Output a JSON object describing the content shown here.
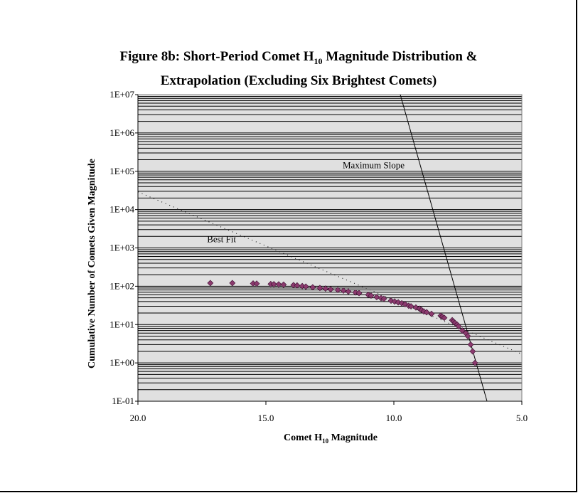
{
  "chart_data": {
    "type": "scatter",
    "title_line1_pre": "Figure 8b:  Short-Period Comet H",
    "title_sub": "10",
    "title_line1_post": " Magnitude Distribution &",
    "title_line2": "Extrapolation (Excluding Six Brightest Comets)",
    "xlabel_pre": "Comet H",
    "xlabel_sub": "10",
    "xlabel_post": " Magnitude",
    "ylabel": "Cumulative Number of Comets Given Magnitude",
    "xlim": [
      20,
      5
    ],
    "ylim": [
      0.1,
      10000000
    ],
    "yscale": "log",
    "x_ticks": [
      "20.0",
      "15.0",
      "10.0",
      "5.0"
    ],
    "x_tick_values": [
      20,
      15,
      10,
      5
    ],
    "y_ticks": [
      "1E+07",
      "1E+06",
      "1E+05",
      "1E+04",
      "1E+03",
      "1E+02",
      "1E+01",
      "1E+00",
      "1E-01"
    ],
    "grid": true,
    "background": "#e0e0e0",
    "marker_color": "#8b3a6e",
    "points": [
      [
        17.17,
        121
      ],
      [
        16.31,
        121
      ],
      [
        15.5,
        118
      ],
      [
        15.36,
        117
      ],
      [
        14.81,
        114
      ],
      [
        14.69,
        113
      ],
      [
        14.5,
        112
      ],
      [
        14.31,
        110
      ],
      [
        13.92,
        107
      ],
      [
        13.78,
        105
      ],
      [
        13.58,
        101
      ],
      [
        13.44,
        98
      ],
      [
        13.17,
        94
      ],
      [
        12.89,
        90
      ],
      [
        12.67,
        87
      ],
      [
        12.47,
        83
      ],
      [
        12.19,
        80
      ],
      [
        11.97,
        77
      ],
      [
        11.78,
        73
      ],
      [
        11.5,
        69
      ],
      [
        11.36,
        66
      ],
      [
        11.0,
        60
      ],
      [
        10.89,
        57
      ],
      [
        10.67,
        52
      ],
      [
        10.5,
        49
      ],
      [
        10.39,
        47
      ],
      [
        10.11,
        42
      ],
      [
        9.97,
        40
      ],
      [
        9.83,
        38
      ],
      [
        9.69,
        36
      ],
      [
        9.56,
        34
      ],
      [
        9.42,
        31
      ],
      [
        9.33,
        30
      ],
      [
        9.14,
        28
      ],
      [
        9.0,
        26
      ],
      [
        8.92,
        24
      ],
      [
        8.83,
        22
      ],
      [
        8.72,
        21
      ],
      [
        8.53,
        19
      ],
      [
        8.17,
        17
      ],
      [
        8.11,
        16
      ],
      [
        8.03,
        15
      ],
      [
        7.72,
        13
      ],
      [
        7.67,
        12
      ],
      [
        7.61,
        11
      ],
      [
        7.53,
        10
      ],
      [
        7.47,
        9
      ],
      [
        7.33,
        7
      ],
      [
        7.19,
        6
      ],
      [
        7.11,
        5
      ],
      [
        7.0,
        3
      ],
      [
        6.92,
        2
      ],
      [
        6.83,
        1
      ]
    ],
    "lines": [
      {
        "name": "Best Fit",
        "style": "dotted",
        "points": [
          [
            20,
            29000
          ],
          [
            5,
            1.7
          ]
        ],
        "label_at": [
          17.3,
          1400
        ]
      },
      {
        "name": "Maximum Slope",
        "style": "solid",
        "points": [
          [
            9.75,
            10000000
          ],
          [
            6.36,
            0.1
          ]
        ],
        "label_at": [
          12.0,
          120000
        ]
      }
    ]
  }
}
